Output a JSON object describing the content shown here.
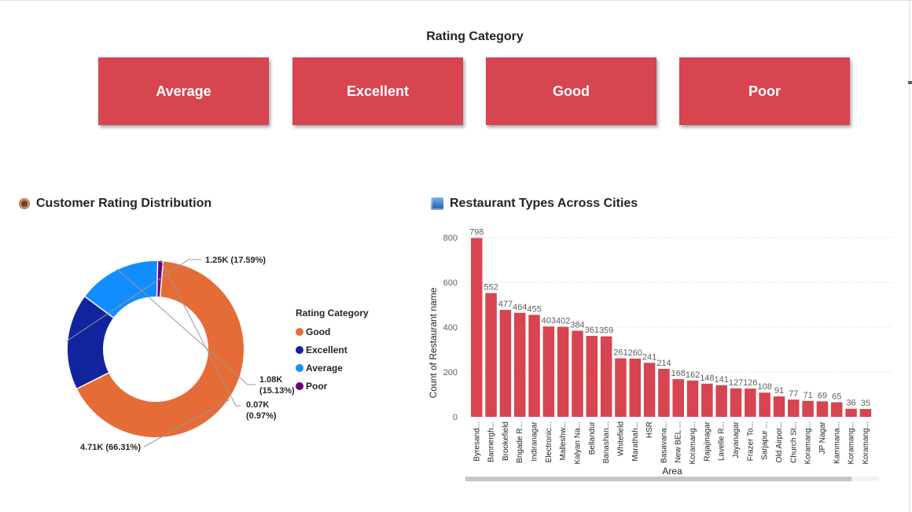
{
  "slicer": {
    "title": "Rating Category",
    "tiles": [
      "Average",
      "Excellent",
      "Good",
      "Poor"
    ],
    "color": "#d64550"
  },
  "donut_visual": {
    "title": "Customer Rating Distribution",
    "title_icon": "donut-icon",
    "legend_title": "Rating Category",
    "labels": [
      "4.71K (66.31%)",
      "1.25K (17.59%)",
      "1.08K",
      "(15.13%)",
      "0.07K",
      "(0.97%)"
    ]
  },
  "bar_visual": {
    "title": "Restaurant Types Across Cities",
    "title_icon": "cityscape-icon"
  },
  "chart_data": [
    {
      "type": "pie",
      "subtype": "donut",
      "legend_title": "Rating Category",
      "legend_position": "right",
      "slices": [
        {
          "name": "Good",
          "value": 4710,
          "percent": 66.31,
          "color": "#e66c37"
        },
        {
          "name": "Excellent",
          "value": 1250,
          "percent": 17.59,
          "color": "#12239e"
        },
        {
          "name": "Average",
          "value": 1080,
          "percent": 15.13,
          "color": "#118dff"
        },
        {
          "name": "Poor",
          "value": 70,
          "percent": 0.97,
          "color": "#6b007b"
        }
      ]
    },
    {
      "type": "bar",
      "xlabel": "Area",
      "ylabel": "Count of Restaurant name",
      "ylim": [
        0,
        800
      ],
      "yticks": [
        0,
        200,
        400,
        600,
        800
      ],
      "grid": true,
      "color": "#d64550",
      "categories": [
        "Byresand...",
        "Bannergh...",
        "Brookefield",
        "Brigade R...",
        "Indiranagar",
        "Electronic...",
        "Malleshw...",
        "Kalyan Na...",
        "Bellandur",
        "Banashan...",
        "Whitefield",
        "Marathah...",
        "HSR",
        "Basavana...",
        "New BEL ...",
        "Koramang...",
        "Rajajinagar",
        "Lavelle R...",
        "Jayanagar",
        "Frazer To...",
        "Sarjapur ...",
        "Old Airpor...",
        "Church St...",
        "Koramang...",
        "JP Nagar",
        "Kammana...",
        "Koramang...",
        "Koramang..."
      ],
      "values": [
        798,
        552,
        477,
        464,
        455,
        403,
        402,
        384,
        361,
        359,
        261,
        260,
        241,
        214,
        168,
        162,
        148,
        141,
        127,
        126,
        108,
        91,
        77,
        71,
        69,
        65,
        36,
        35
      ]
    }
  ]
}
